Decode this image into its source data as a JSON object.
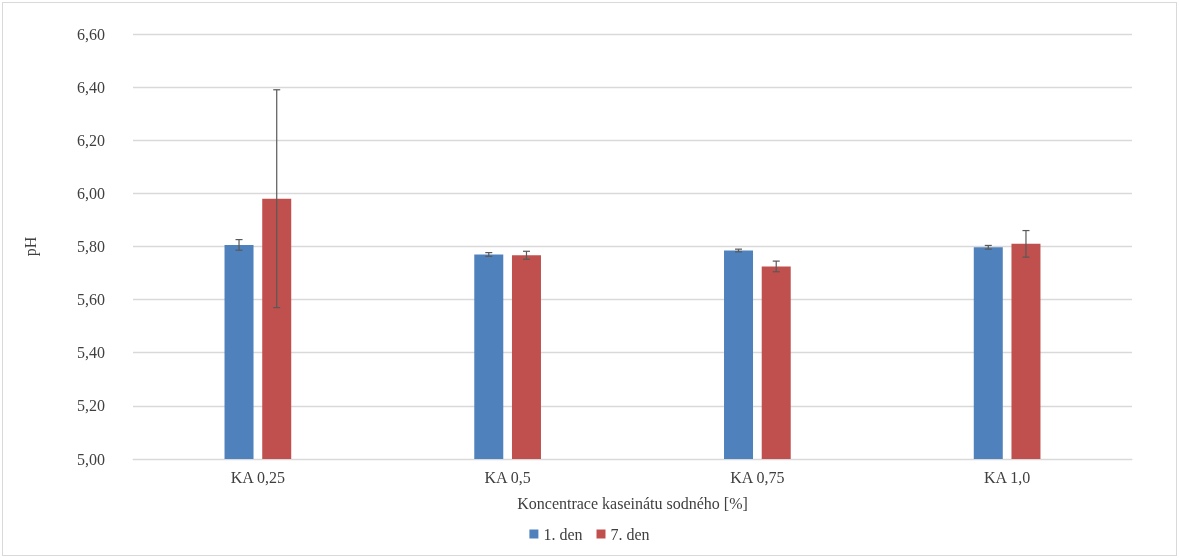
{
  "chart_data": {
    "type": "bar",
    "xlabel": "Koncentrace kaseinátu sodného [%]",
    "ylabel": "pH",
    "categories": [
      "KA 0,25",
      "KA 0,5",
      "KA 0,75",
      "KA 1,0"
    ],
    "series": [
      {
        "name": "1. den",
        "color": "#4f81bd",
        "values": [
          5.806,
          5.77,
          5.785,
          5.797
        ],
        "errors": [
          0.02,
          0.007,
          0.005,
          0.007
        ]
      },
      {
        "name": "7. den",
        "color": "#c0504d",
        "values": [
          5.98,
          5.767,
          5.725,
          5.81
        ],
        "errors": [
          0.41,
          0.015,
          0.02,
          0.05
        ]
      }
    ],
    "ylim": [
      5.0,
      6.6
    ],
    "yticks": [
      {
        "value": 5.0,
        "label": "5,00"
      },
      {
        "value": 5.2,
        "label": "5,20"
      },
      {
        "value": 5.4,
        "label": "5,40"
      },
      {
        "value": 5.6,
        "label": "5,60"
      },
      {
        "value": 5.8,
        "label": "5,80"
      },
      {
        "value": 6.0,
        "label": "6,00"
      },
      {
        "value": 6.2,
        "label": "6,20"
      },
      {
        "value": 6.4,
        "label": "6,40"
      },
      {
        "value": 6.6,
        "label": "6,60"
      }
    ],
    "grid": "y",
    "legend": "bottom"
  }
}
